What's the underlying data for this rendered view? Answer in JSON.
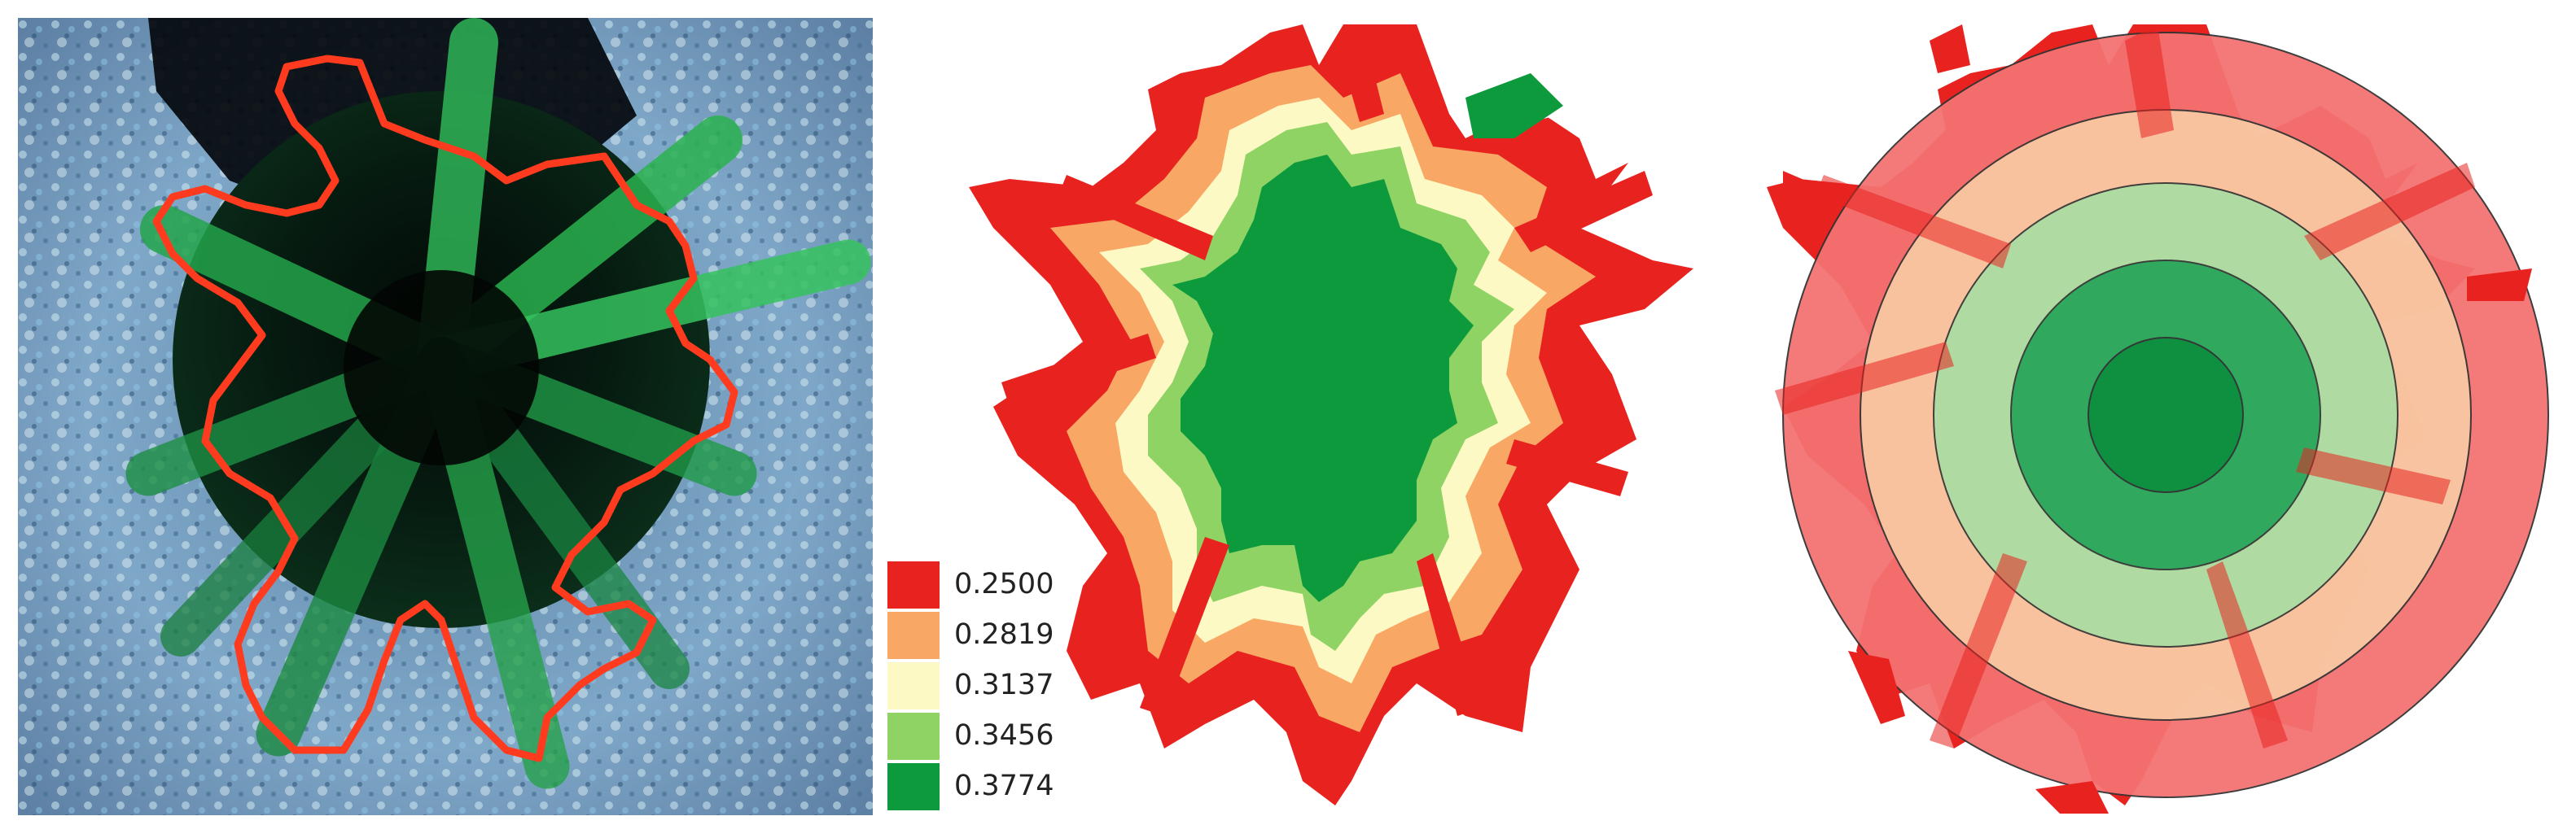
{
  "figure": {
    "panels": [
      {
        "name": "true-color image with crown outline",
        "outline_color": "#ff3b1f"
      },
      {
        "name": "classified index map"
      },
      {
        "name": "concentric ring overlay"
      }
    ]
  },
  "legend": {
    "entries": [
      {
        "label": "0.2500",
        "color": "#e8231f"
      },
      {
        "label": "0.2819",
        "color": "#f8a765"
      },
      {
        "label": "0.3137",
        "color": "#fdf9c4"
      },
      {
        "label": "0.3456",
        "color": "#8fd365"
      },
      {
        "label": "0.3774",
        "color": "#0d9a3c"
      }
    ]
  },
  "rings": {
    "colors": [
      "#f47272",
      "#f9c9a3",
      "#a9dea4",
      "#26a55a",
      "#0e8f3f"
    ]
  }
}
